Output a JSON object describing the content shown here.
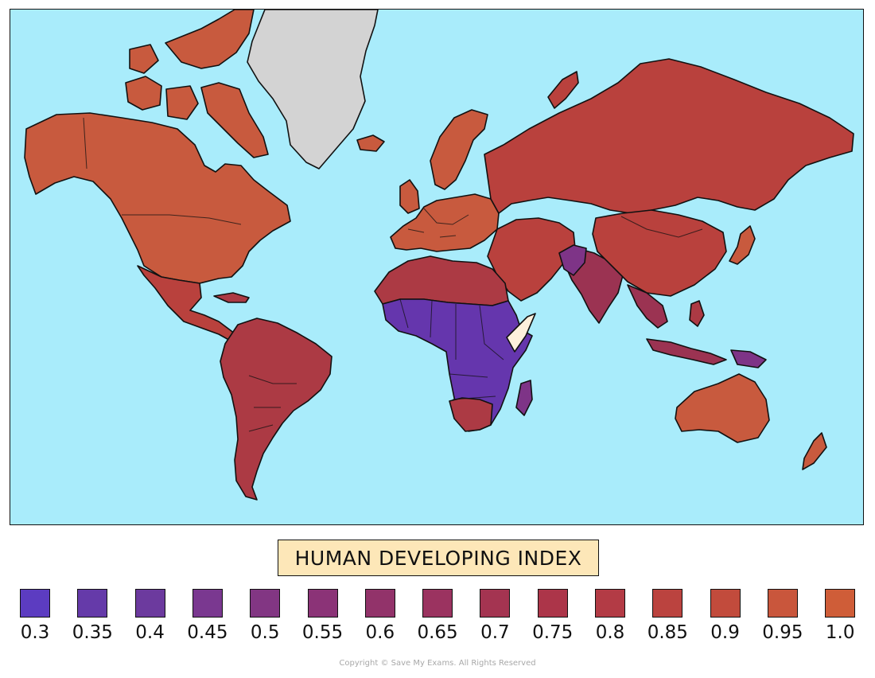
{
  "map": {
    "colors": {
      "ocean": "#a9ecfb",
      "no_data": "#d3d3d3",
      "very_high": "#c85a3e",
      "high": "#b9413d",
      "upper_mid": "#ac3a44",
      "mid": "#9b3352",
      "low_mid": "#7e3487",
      "low": "#6536ad",
      "lowest": "#5b3bc1",
      "highlight": "#fdf0dc"
    }
  },
  "legend": {
    "title": "HUMAN DEVELOPING INDEX",
    "items": [
      {
        "label": "0.3",
        "color": "#5c3cc1"
      },
      {
        "label": "0.35",
        "color": "#653aa9"
      },
      {
        "label": "0.4",
        "color": "#6c3a9e"
      },
      {
        "label": "0.45",
        "color": "#7a3890"
      },
      {
        "label": "0.5",
        "color": "#823683"
      },
      {
        "label": "0.55",
        "color": "#8b3377"
      },
      {
        "label": "0.6",
        "color": "#92336a"
      },
      {
        "label": "0.65",
        "color": "#9b3360"
      },
      {
        "label": "0.7",
        "color": "#a43451"
      },
      {
        "label": "0.75",
        "color": "#ac3549"
      },
      {
        "label": "0.8",
        "color": "#b33b45"
      },
      {
        "label": "0.85",
        "color": "#bb433f"
      },
      {
        "label": "0.9",
        "color": "#c24b3c"
      },
      {
        "label": "0.95",
        "color": "#c9563c"
      },
      {
        "label": "1.0",
        "color": "#cf5d38"
      }
    ]
  },
  "footer": {
    "copyright": "Copyright © Save My Exams. All Rights Reserved"
  }
}
